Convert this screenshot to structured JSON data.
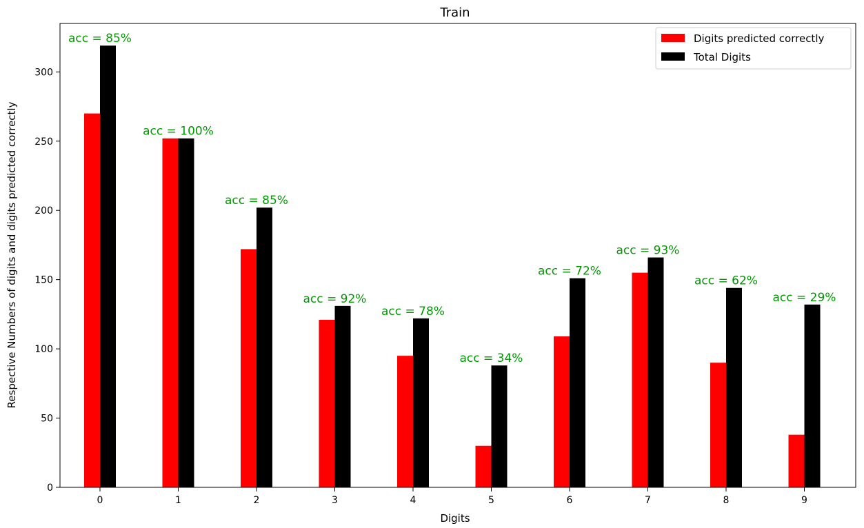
{
  "chart_data": {
    "type": "bar",
    "title": "Train",
    "xlabel": "Digits",
    "ylabel": "Respective Numbers of digits and digits predicted correctly",
    "categories": [
      "0",
      "1",
      "2",
      "3",
      "4",
      "5",
      "6",
      "7",
      "8",
      "9"
    ],
    "series": [
      {
        "name": "Digits predicted correctly",
        "color": "#ff0000",
        "values": [
          270,
          252,
          172,
          121,
          95,
          30,
          109,
          155,
          90,
          38
        ]
      },
      {
        "name": "Total Digits",
        "color": "#000000",
        "values": [
          319,
          252,
          202,
          131,
          122,
          88,
          151,
          166,
          144,
          132
        ]
      }
    ],
    "annotations": [
      "acc = 85%",
      "acc = 100%",
      "acc = 85%",
      "acc = 92%",
      "acc = 78%",
      "acc = 34%",
      "acc = 72%",
      "acc = 93%",
      "acc = 62%",
      "acc = 29%"
    ],
    "annotation_color": "#009900",
    "yticks": [
      0,
      50,
      100,
      150,
      200,
      250,
      300
    ],
    "ylim": [
      0,
      335
    ],
    "grid": false,
    "legend_position": "top-right"
  }
}
